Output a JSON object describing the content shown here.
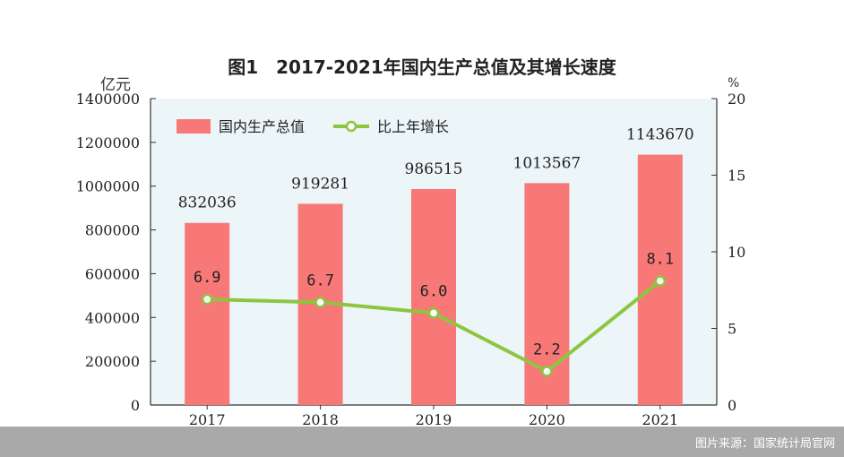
{
  "chart_data": {
    "type": "bar",
    "title": "图1　2017-2021年国内生产总值及其增长速度",
    "y_left_label": "亿元",
    "y_right_label": "%",
    "categories": [
      "2017",
      "2018",
      "2019",
      "2020",
      "2021"
    ],
    "y_left_ticks": [
      "0",
      "200000",
      "400000",
      "600000",
      "800000",
      "1000000",
      "1200000",
      "1400000"
    ],
    "y_right_ticks": [
      "0",
      "5",
      "10",
      "15",
      "20"
    ],
    "ylim_left": [
      0,
      1400000
    ],
    "ylim_right": [
      0,
      20
    ],
    "series": [
      {
        "name": "国内生产总值",
        "type": "bar",
        "axis": "left",
        "color": "#f87878",
        "values": [
          832036,
          919281,
          986515,
          1013567,
          1143670
        ],
        "labels": [
          "832036",
          "919281",
          "986515",
          "1013567",
          "1143670"
        ]
      },
      {
        "name": "比上年增长",
        "type": "line",
        "axis": "right",
        "color": "#8cc63f",
        "values": [
          6.9,
          6.7,
          6.0,
          2.2,
          8.1
        ],
        "labels": [
          "6.9",
          "6.7",
          "6.0",
          "2.2",
          "8.1"
        ]
      }
    ],
    "legend": [
      "国内生产总值",
      "比上年增长"
    ],
    "legend_position": "top-left"
  },
  "footer": {
    "source_text": "图片来源：国家统计局官网"
  },
  "colors": {
    "plot_background": "#ecf5f8",
    "bar": "#f87878",
    "line": "#8cc63f",
    "footer": "#a9a9a9"
  }
}
